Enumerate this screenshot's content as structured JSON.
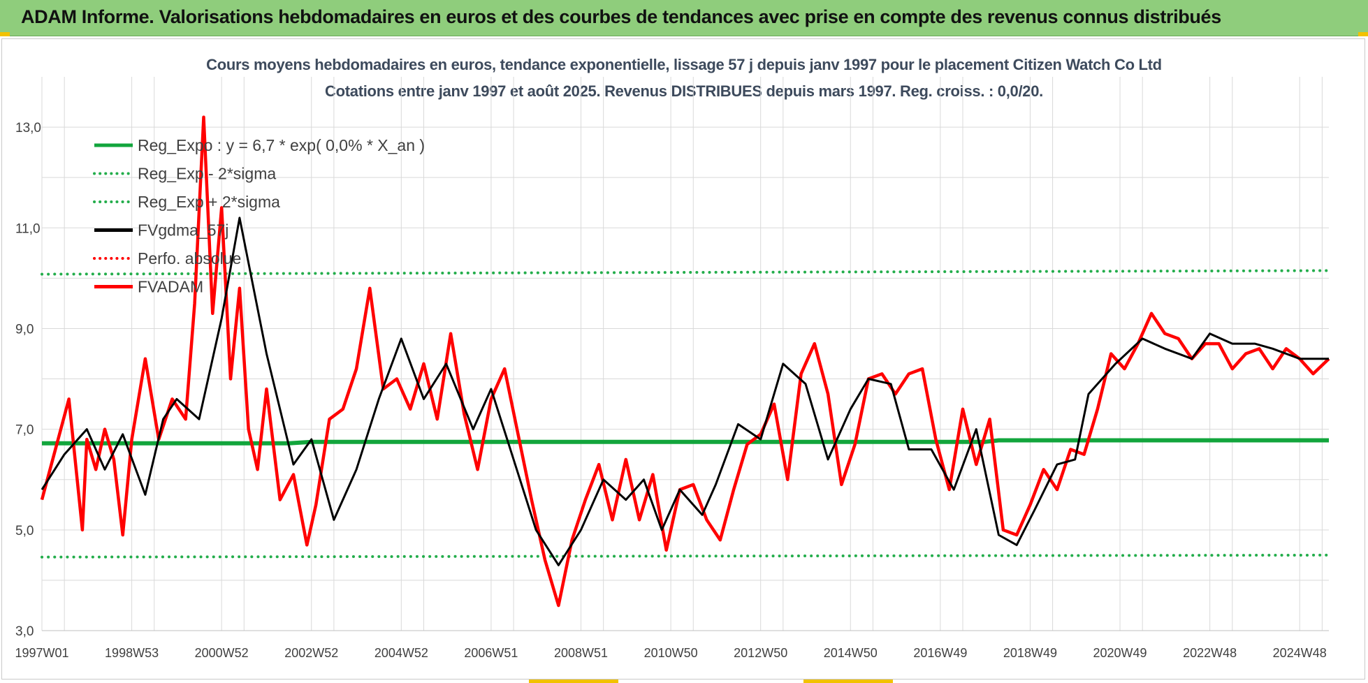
{
  "banner": {
    "title": "ADAM Informe. Valorisations hebdomadaires en euros et des courbes de tendances avec prise en compte des revenus connus distribués"
  },
  "colors": {
    "banner_bg": "#8fcd7c",
    "reg_green": "#12a53c",
    "sigma_green": "#23ad4b",
    "gdma_black": "#000000",
    "adam_red": "#ff0000",
    "perfo_red": "#ff0000",
    "grid": "#d9d9d9",
    "corner_accent": "#f2c200"
  },
  "chart_data": {
    "type": "line",
    "title": "Cours moyens hebdomadaires en euros, tendance exponentielle, lissage 57 j depuis janv 1997 pour le placement Citizen Watch Co Ltd",
    "subtitle": "Cotations entre janv 1997 et août 2025.  Revenus DISTRIBUES depuis mars 1997. Reg. croiss. : 0,0/20.",
    "xlabel": "",
    "ylabel": "",
    "x_range": [
      1997.0,
      2025.65
    ],
    "ylim": [
      3.0,
      14.0
    ],
    "y_ticks": [
      "3,0",
      "5,0",
      "7,0",
      "9,0",
      "11,0",
      "13,0"
    ],
    "y_tick_values": [
      3,
      5,
      7,
      9,
      11,
      13
    ],
    "x_ticks": [
      "1997W01",
      "1998W53",
      "2000W52",
      "2002W52",
      "2004W52",
      "2006W51",
      "2008W51",
      "2010W50",
      "2012W50",
      "2014W50",
      "2016W49",
      "2018W49",
      "2020W49",
      "2022W48",
      "2024W48"
    ],
    "x_tick_years": [
      1997.0,
      1999.0,
      2001.0,
      2003.0,
      2005.0,
      2007.0,
      2009.0,
      2011.0,
      2013.0,
      2015.0,
      2017.0,
      2019.0,
      2021.0,
      2023.0,
      2025.0
    ],
    "grid": true,
    "legend_position": "top-left",
    "legend": [
      {
        "label": "Reg_Expo : y = 6,7 * exp( 0,0% *  X_an )",
        "style": "solid",
        "color": "#12a53c"
      },
      {
        "label": "Reg_Exp - 2*sigma",
        "style": "dotted",
        "color": "#23ad4b"
      },
      {
        "label": "Reg_Exp + 2*sigma",
        "style": "dotted",
        "color": "#23ad4b"
      },
      {
        "label": "FVgdma_57j",
        "style": "solid",
        "color": "#000000"
      },
      {
        "label": "Perfo. absolue",
        "style": "dotted",
        "color": "#ff0000"
      },
      {
        "label": "FVADAM",
        "style": "solid",
        "color": "#ff0000"
      }
    ],
    "series": [
      {
        "name": "Reg_Expo : y = 6,7 * exp( 0,0% *  X_an )",
        "x": [
          1997.0,
          2002.5,
          2003.0,
          2018.0,
          2018.3,
          2025.65
        ],
        "values": [
          6.72,
          6.72,
          6.75,
          6.75,
          6.78,
          6.78
        ]
      },
      {
        "name": "Reg_Exp - 2*sigma",
        "x": [
          1997.0,
          2025.65
        ],
        "values": [
          4.46,
          4.5
        ]
      },
      {
        "name": "Reg_Exp + 2*sigma",
        "x": [
          1997.0,
          2025.65
        ],
        "values": [
          10.08,
          10.15
        ]
      },
      {
        "name": "FVgdma_57j",
        "x": [
          1997.0,
          1997.5,
          1998.0,
          1998.4,
          1998.8,
          1999.3,
          1999.7,
          2000.0,
          2000.5,
          2001.0,
          2001.4,
          2002.0,
          2002.6,
          2003.0,
          2003.5,
          2004.0,
          2004.5,
          2005.0,
          2005.5,
          2006.0,
          2006.6,
          2007.0,
          2007.5,
          2008.0,
          2008.5,
          2009.0,
          2009.5,
          2010.0,
          2010.4,
          2010.8,
          2011.2,
          2011.7,
          2012.0,
          2012.5,
          2013.0,
          2013.5,
          2014.0,
          2014.5,
          2015.0,
          2015.4,
          2015.9,
          2016.3,
          2016.8,
          2017.3,
          2017.8,
          2018.3,
          2018.7,
          2019.1,
          2019.6,
          2020.0,
          2020.3,
          2020.9,
          2021.5,
          2022.0,
          2022.6,
          2023.0,
          2023.5,
          2024.0,
          2024.4,
          2025.0,
          2025.65
        ],
        "values": [
          5.8,
          6.5,
          7.0,
          6.2,
          6.9,
          5.7,
          7.2,
          7.6,
          7.2,
          9.2,
          11.2,
          8.5,
          6.3,
          6.8,
          5.2,
          6.2,
          7.6,
          8.8,
          7.6,
          8.3,
          7.0,
          7.8,
          6.4,
          5.0,
          4.3,
          5.0,
          6.0,
          5.6,
          6.0,
          5.0,
          5.8,
          5.3,
          5.9,
          7.1,
          6.8,
          8.3,
          7.9,
          6.4,
          7.4,
          8.0,
          7.9,
          6.6,
          6.6,
          5.8,
          7.0,
          4.9,
          4.7,
          5.4,
          6.3,
          6.4,
          7.7,
          8.3,
          8.8,
          8.6,
          8.4,
          8.9,
          8.7,
          8.7,
          8.6,
          8.4,
          8.4
        ]
      },
      {
        "name": "FVADAM",
        "x": [
          1997.0,
          1997.3,
          1997.6,
          1997.9,
          1998.0,
          1998.2,
          1998.4,
          1998.6,
          1998.8,
          1999.0,
          1999.3,
          1999.6,
          1999.9,
          2000.2,
          2000.4,
          2000.6,
          2000.8,
          2001.0,
          2001.2,
          2001.4,
          2001.6,
          2001.8,
          2002.0,
          2002.3,
          2002.6,
          2002.9,
          2003.1,
          2003.4,
          2003.7,
          2004.0,
          2004.3,
          2004.6,
          2004.9,
          2005.2,
          2005.5,
          2005.8,
          2006.1,
          2006.4,
          2006.7,
          2007.0,
          2007.3,
          2007.6,
          2007.9,
          2008.2,
          2008.5,
          2008.8,
          2009.1,
          2009.4,
          2009.7,
          2010.0,
          2010.3,
          2010.6,
          2010.9,
          2011.2,
          2011.5,
          2011.8,
          2012.1,
          2012.4,
          2012.7,
          2013.0,
          2013.3,
          2013.6,
          2013.9,
          2014.2,
          2014.5,
          2014.8,
          2015.1,
          2015.4,
          2015.7,
          2016.0,
          2016.3,
          2016.6,
          2016.9,
          2017.2,
          2017.5,
          2017.8,
          2018.1,
          2018.4,
          2018.7,
          2019.0,
          2019.3,
          2019.6,
          2019.9,
          2020.2,
          2020.5,
          2020.8,
          2021.1,
          2021.4,
          2021.7,
          2022.0,
          2022.3,
          2022.6,
          2022.9,
          2023.2,
          2023.5,
          2023.8,
          2024.1,
          2024.4,
          2024.7,
          2025.0,
          2025.3,
          2025.65
        ],
        "values": [
          5.6,
          6.6,
          7.6,
          5.0,
          6.8,
          6.2,
          7.0,
          6.4,
          4.9,
          6.8,
          8.4,
          6.8,
          7.6,
          7.2,
          9.5,
          13.2,
          9.3,
          11.4,
          8.0,
          9.8,
          7.0,
          6.2,
          7.8,
          5.6,
          6.1,
          4.7,
          5.5,
          7.2,
          7.4,
          8.2,
          9.8,
          7.8,
          8.0,
          7.4,
          8.3,
          7.2,
          8.9,
          7.3,
          6.2,
          7.6,
          8.2,
          6.9,
          5.6,
          4.4,
          3.5,
          4.8,
          5.6,
          6.3,
          5.2,
          6.4,
          5.2,
          6.1,
          4.6,
          5.8,
          5.9,
          5.2,
          4.8,
          5.8,
          6.7,
          6.9,
          7.5,
          6.0,
          8.1,
          8.7,
          7.7,
          5.9,
          6.7,
          8.0,
          8.1,
          7.7,
          8.1,
          8.2,
          6.8,
          5.8,
          7.4,
          6.3,
          7.2,
          5.0,
          4.9,
          5.5,
          6.2,
          5.8,
          6.6,
          6.5,
          7.4,
          8.5,
          8.2,
          8.7,
          9.3,
          8.9,
          8.8,
          8.4,
          8.7,
          8.7,
          8.2,
          8.5,
          8.6,
          8.2,
          8.6,
          8.4,
          8.1,
          8.4
        ]
      }
    ]
  }
}
